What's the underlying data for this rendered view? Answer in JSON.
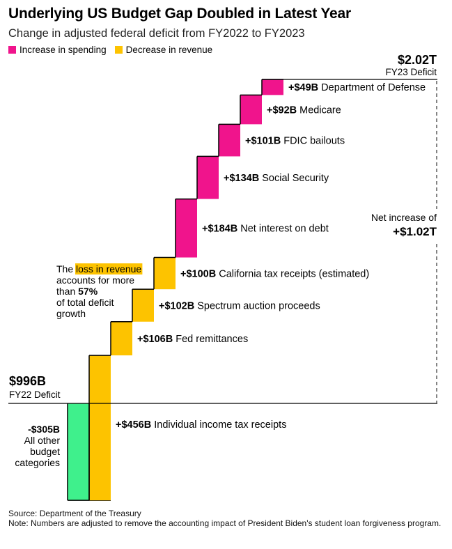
{
  "chart_data": {
    "type": "waterfall",
    "title": "Underlying US Budget Gap Doubled in Latest Year",
    "subtitle": "Change in adjusted federal deficit from FY2022 to FY2023",
    "legend": [
      {
        "label": "Increase in spending",
        "color": "#f0148c"
      },
      {
        "label": "Decrease in revenue",
        "color": "#fdc300"
      }
    ],
    "start": {
      "value": "$996B",
      "label": "FY22 Deficit",
      "amount": 996
    },
    "end": {
      "value": "$2.02T",
      "label": "FY23 Deficit",
      "amount": 2020
    },
    "negative_step": {
      "value_label": "-$305B",
      "lines": [
        "All other",
        "budget",
        "categories"
      ],
      "amount": -305,
      "color": "#3ff08c"
    },
    "steps": [
      {
        "value_label": "+$456B",
        "name": "Individual income tax receipts",
        "amount": 456,
        "kind": "revenue"
      },
      {
        "value_label": "+$106B",
        "name": "Fed remittances",
        "amount": 106,
        "kind": "revenue"
      },
      {
        "value_label": "+$102B",
        "name": "Spectrum auction proceeds",
        "amount": 102,
        "kind": "revenue"
      },
      {
        "value_label": "+$100B",
        "name": "California tax receipts (estimated)",
        "amount": 100,
        "kind": "revenue"
      },
      {
        "value_label": "+$184B",
        "name": "Net interest on debt",
        "amount": 184,
        "kind": "spending"
      },
      {
        "value_label": "+$134B",
        "name": "Social Security",
        "amount": 134,
        "kind": "spending"
      },
      {
        "value_label": "+$101B",
        "name": "FDIC bailouts",
        "amount": 101,
        "kind": "spending"
      },
      {
        "value_label": "+$92B",
        "name": "Medicare",
        "amount": 92,
        "kind": "spending"
      },
      {
        "value_label": "+$49B",
        "name": "Department of Defense",
        "amount": 49,
        "kind": "spending"
      }
    ],
    "net_increase": {
      "label": "Net increase of",
      "value": "+$1.02T"
    },
    "annotation": {
      "lines": [
        {
          "parts": [
            {
              "text": "The ",
              "style": "normal"
            },
            {
              "text": "loss in revenue",
              "style": "highlight"
            }
          ]
        },
        {
          "parts": [
            {
              "text": "accounts for more",
              "style": "normal"
            }
          ]
        },
        {
          "parts": [
            {
              "text": "than ",
              "style": "normal"
            },
            {
              "text": "57%",
              "style": "bold"
            }
          ]
        },
        {
          "parts": [
            {
              "text": "of total deficit",
              "style": "normal"
            }
          ]
        },
        {
          "parts": [
            {
              "text": "growth",
              "style": "normal"
            }
          ]
        }
      ]
    }
  },
  "footer": {
    "source": "Source: Department of the Treasury",
    "note": "Note: Numbers are adjusted to remove the accounting impact of President Biden's student loan forgiveness program."
  },
  "colors": {
    "spending": "#f0148c",
    "revenue": "#fdc300",
    "negative": "#3ff08c"
  }
}
